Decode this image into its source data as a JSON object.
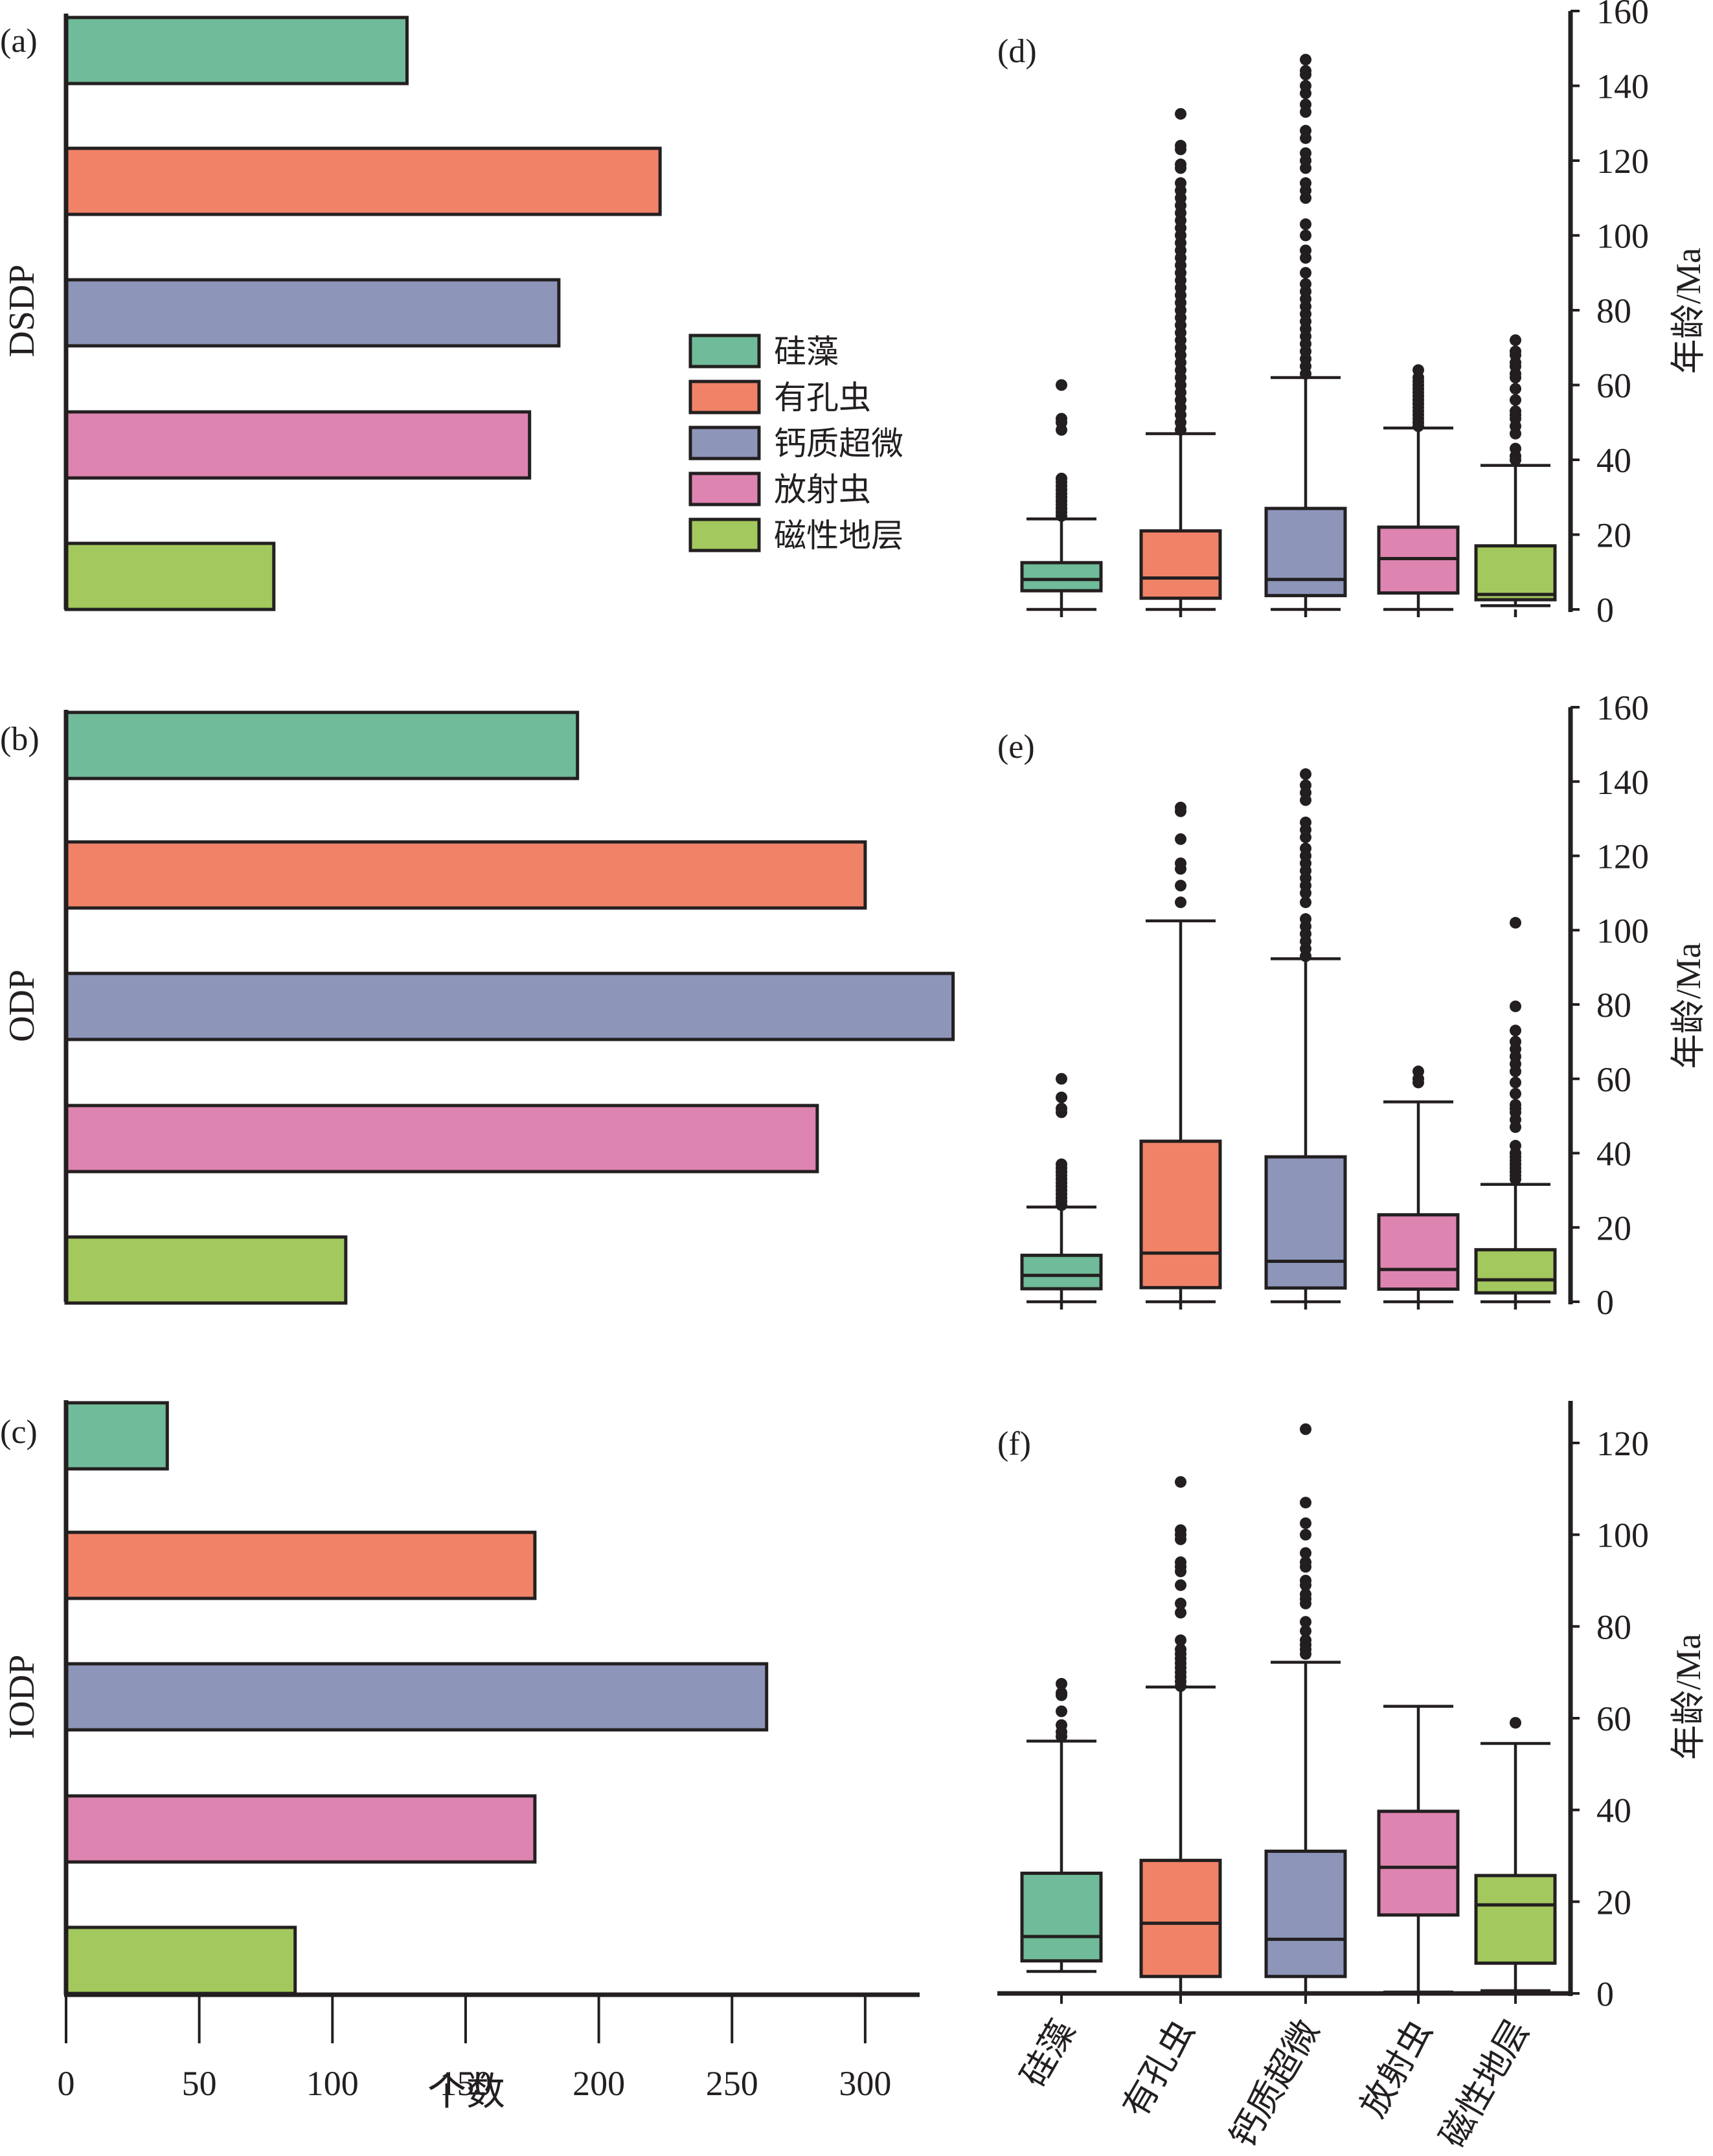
{
  "categories": [
    "硅藻",
    "有孔虫",
    "钙质超微",
    "放射虫",
    "磁性地层"
  ],
  "colors": [
    "#70bb99",
    "#f08367",
    "#8d95b9",
    "#de84b0",
    "#a3c85d"
  ],
  "legend": {
    "placement": "center-right of bar panels",
    "items": [
      "硅藻",
      "有孔虫",
      "钙质超微",
      "放射虫",
      "磁性地层"
    ]
  },
  "chart_data": [
    {
      "type": "bar",
      "panel": "(a)",
      "ylabel": "DSDP",
      "xlabel": "个数",
      "orientation": "horizontal",
      "categories": [
        "硅藻",
        "有孔虫",
        "钙质超微",
        "放射虫",
        "磁性地层"
      ],
      "values": [
        128,
        223,
        185,
        174,
        78
      ],
      "xlim": [
        0,
        320
      ],
      "xticks": [
        0,
        50,
        100,
        150,
        200,
        250,
        300
      ],
      "grid": false
    },
    {
      "type": "bar",
      "panel": "(b)",
      "ylabel": "ODP",
      "xlabel": "个数",
      "orientation": "horizontal",
      "categories": [
        "硅藻",
        "有孔虫",
        "钙质超微",
        "放射虫",
        "磁性地层"
      ],
      "values": [
        192,
        300,
        333,
        282,
        105
      ],
      "xlim": [
        0,
        320
      ],
      "xticks": [
        0,
        50,
        100,
        150,
        200,
        250,
        300
      ],
      "grid": false
    },
    {
      "type": "bar",
      "panel": "(c)",
      "ylabel": "IODP",
      "xlabel": "个数",
      "orientation": "horizontal",
      "categories": [
        "硅藻",
        "有孔虫",
        "钙质超微",
        "放射虫",
        "磁性地层"
      ],
      "values": [
        38,
        176,
        263,
        176,
        86
      ],
      "xlim": [
        0,
        320
      ],
      "xticks": [
        0,
        50,
        100,
        150,
        200,
        250,
        300
      ],
      "xticklabels": [
        "0",
        "50",
        "100",
        "150",
        "200",
        "250",
        "300"
      ],
      "grid": false
    },
    {
      "type": "box",
      "panel": "(d)",
      "ylabel": "年龄/Ma",
      "ylim": [
        0,
        160
      ],
      "yticks": [
        0,
        20,
        40,
        60,
        80,
        100,
        120,
        140,
        160
      ],
      "categories": [
        "硅藻",
        "有孔虫",
        "钙质超微",
        "放射虫",
        "磁性地层"
      ],
      "boxes": [
        {
          "min": 0,
          "q1": 5,
          "median": 8,
          "q3": 12.5,
          "max": 24.2,
          "outliers": [
            25,
            26,
            27,
            28,
            29,
            30,
            31,
            32,
            33,
            34,
            35,
            48,
            50,
            51,
            60
          ]
        },
        {
          "min": 0,
          "q1": 3,
          "median": 8.4,
          "q3": 21,
          "max": 47,
          "outliers": [
            48,
            50,
            52,
            54,
            56,
            58,
            60,
            62,
            64,
            66,
            68,
            70,
            72,
            74,
            76,
            78,
            80,
            82,
            84,
            86,
            88,
            90,
            92,
            94,
            96,
            98,
            100,
            102,
            104,
            106,
            108,
            110,
            112,
            114,
            118,
            119,
            123,
            124,
            132.5
          ]
        },
        {
          "min": 0,
          "q1": 3.7,
          "median": 8,
          "q3": 27,
          "max": 62,
          "outliers": [
            63,
            65,
            67,
            69,
            71,
            73,
            75,
            77,
            79,
            81,
            83,
            85,
            87,
            90,
            94,
            96,
            100,
            103,
            110,
            112,
            114,
            118,
            120,
            122,
            126,
            128,
            133,
            135,
            138,
            140,
            143,
            144,
            147
          ]
        },
        {
          "min": 0,
          "q1": 4.4,
          "median": 13.6,
          "q3": 22,
          "max": 48.5,
          "outliers": [
            49,
            50,
            51,
            52,
            53,
            54,
            55,
            56,
            57,
            58,
            59,
            60,
            61,
            62,
            64
          ]
        },
        {
          "min": 1,
          "q1": 2.6,
          "median": 4,
          "q3": 17,
          "max": 38.5,
          "outliers": [
            40,
            41,
            43,
            47,
            49,
            51,
            52,
            53,
            56,
            59,
            62,
            63,
            65,
            66,
            68,
            69,
            72
          ]
        }
      ]
    },
    {
      "type": "box",
      "panel": "(e)",
      "ylabel": "年龄/Ma",
      "ylim": [
        0,
        160
      ],
      "yticks": [
        0,
        20,
        40,
        60,
        80,
        100,
        120,
        140,
        160
      ],
      "categories": [
        "硅藻",
        "有孔虫",
        "钙质超微",
        "放射虫",
        "磁性地层"
      ],
      "boxes": [
        {
          "min": 0,
          "q1": 3.5,
          "median": 7.1,
          "q3": 12.5,
          "max": 25.5,
          "outliers": [
            26,
            27,
            28,
            29,
            30,
            31,
            32,
            33,
            34,
            35,
            36,
            37,
            51,
            52,
            55,
            60
          ]
        },
        {
          "min": 0,
          "q1": 3.8,
          "median": 13.1,
          "q3": 43.2,
          "max": 102.5,
          "outliers": [
            107.5,
            112,
            116.5,
            118,
            124.5,
            132,
            133
          ]
        },
        {
          "min": 0,
          "q1": 3.7,
          "median": 10.9,
          "q3": 39,
          "max": 92.3,
          "outliers": [
            93,
            95,
            97,
            99,
            101,
            103,
            107.5,
            110,
            112,
            114,
            116,
            118,
            120,
            122,
            125,
            127,
            129,
            135,
            137,
            139,
            142
          ]
        },
        {
          "min": 0,
          "q1": 3.4,
          "median": 8.7,
          "q3": 23.4,
          "max": 53.8,
          "outliers": [
            59,
            60,
            62
          ]
        },
        {
          "min": 0,
          "q1": 2.4,
          "median": 5.9,
          "q3": 14,
          "max": 31.6,
          "outliers": [
            33,
            34,
            35,
            36,
            37,
            38,
            39,
            40,
            42,
            47,
            49,
            51,
            52,
            53,
            56,
            59,
            62,
            64,
            66,
            68,
            70,
            73,
            79.5,
            102
          ]
        }
      ]
    },
    {
      "type": "box",
      "panel": "(f)",
      "ylabel": "年龄/Ma",
      "ylim": [
        0,
        128
      ],
      "yticks": [
        0,
        20,
        40,
        60,
        80,
        100,
        120
      ],
      "categories": [
        "硅藻",
        "有孔虫",
        "钙质超微",
        "放射虫",
        "磁性地层"
      ],
      "xticklabels": [
        "硅藻",
        "有孔虫",
        "钙质超微",
        "放射虫",
        "磁性地层"
      ],
      "boxes": [
        {
          "min": 4.8,
          "q1": 7.1,
          "median": 12.4,
          "q3": 26.2,
          "max": 55,
          "outliers": [
            56,
            57,
            58.5,
            61.5,
            65,
            65.5,
            67.5
          ]
        },
        {
          "min": 0,
          "q1": 3.7,
          "median": 15.3,
          "q3": 29,
          "max": 66.8,
          "outliers": [
            67,
            68,
            69,
            70,
            71,
            72,
            73,
            74,
            75,
            77,
            83,
            85,
            89,
            92,
            93,
            94,
            99,
            100,
            101,
            111.5
          ]
        },
        {
          "min": 0,
          "q1": 3.7,
          "median": 11.8,
          "q3": 31,
          "max": 72.2,
          "outliers": [
            74,
            75,
            76,
            77,
            79,
            81,
            85,
            86,
            87,
            89,
            90,
            93,
            94,
            96,
            100,
            102.5,
            107,
            123
          ]
        },
        {
          "min": 0.3,
          "q1": 17.1,
          "median": 27.5,
          "q3": 39.7,
          "max": 62.6,
          "outliers": []
        },
        {
          "min": 0.6,
          "q1": 6.6,
          "median": 19.3,
          "q3": 25.7,
          "max": 54.5,
          "outliers": [
            59
          ]
        }
      ]
    }
  ]
}
